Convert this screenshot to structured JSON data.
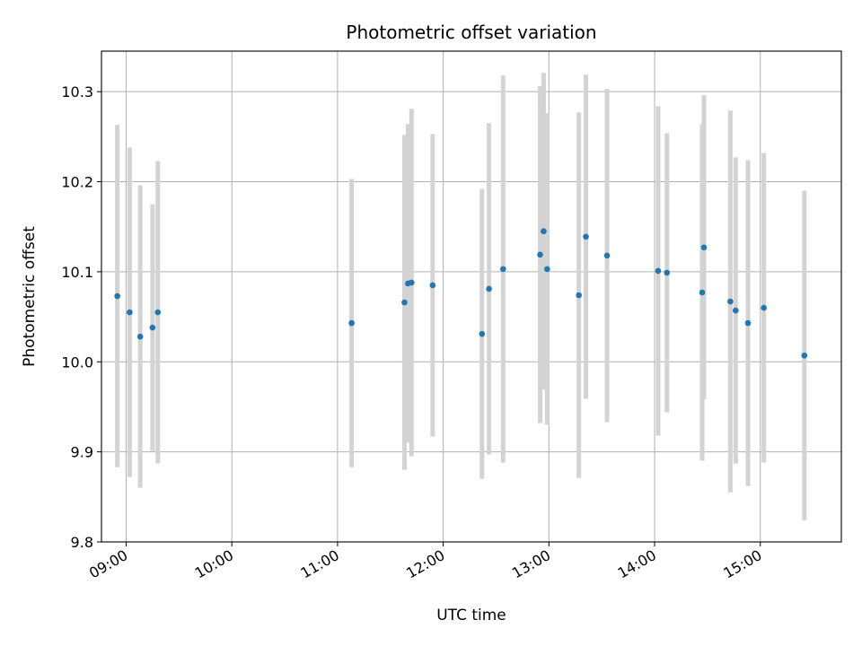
{
  "chart_data": {
    "type": "scatter",
    "title": "Photometric offset variation",
    "xlabel": "UTC time",
    "ylabel": "Photometric offset",
    "x_unit": "hours UTC",
    "xlim": [
      "08:46",
      "15:46"
    ],
    "ylim": [
      9.8,
      10.345
    ],
    "x_ticks": [
      "09:00",
      "10:00",
      "11:00",
      "12:00",
      "13:00",
      "14:00",
      "15:00"
    ],
    "y_ticks": [
      "9.8",
      "9.9",
      "10.0",
      "10.1",
      "10.2",
      "10.3"
    ],
    "grid": true,
    "colors": {
      "point": "#1f77b4",
      "errorbar": "#d3d3d3",
      "grid": "#b0b0b0"
    },
    "points": [
      {
        "x": "08:55",
        "y": 10.073,
        "err": 0.19
      },
      {
        "x": "09:02",
        "y": 10.055,
        "err": 0.183
      },
      {
        "x": "09:08",
        "y": 10.028,
        "err": 0.168
      },
      {
        "x": "09:15",
        "y": 10.038,
        "err": 0.137
      },
      {
        "x": "09:18",
        "y": 10.055,
        "err": 0.168
      },
      {
        "x": "11:08",
        "y": 10.043,
        "err": 0.16
      },
      {
        "x": "11:38",
        "y": 10.066,
        "err": 0.186
      },
      {
        "x": "11:40",
        "y": 10.087,
        "err": 0.177
      },
      {
        "x": "11:42",
        "y": 10.088,
        "err": 0.193
      },
      {
        "x": "11:54",
        "y": 10.085,
        "err": 0.168
      },
      {
        "x": "12:22",
        "y": 10.031,
        "err": 0.161
      },
      {
        "x": "12:26",
        "y": 10.081,
        "err": 0.184
      },
      {
        "x": "12:34",
        "y": 10.103,
        "err": 0.215
      },
      {
        "x": "12:55",
        "y": 10.119,
        "err": 0.187
      },
      {
        "x": "12:57",
        "y": 10.145,
        "err": 0.176
      },
      {
        "x": "12:59",
        "y": 10.103,
        "err": 0.173
      },
      {
        "x": "13:17",
        "y": 10.074,
        "err": 0.203
      },
      {
        "x": "13:21",
        "y": 10.139,
        "err": 0.18
      },
      {
        "x": "13:33",
        "y": 10.118,
        "err": 0.185
      },
      {
        "x": "14:02",
        "y": 10.101,
        "err": 0.183
      },
      {
        "x": "14:07",
        "y": 10.099,
        "err": 0.155
      },
      {
        "x": "14:27",
        "y": 10.077,
        "err": 0.187
      },
      {
        "x": "14:28",
        "y": 10.127,
        "err": 0.169
      },
      {
        "x": "14:43",
        "y": 10.067,
        "err": 0.212
      },
      {
        "x": "14:46",
        "y": 10.057,
        "err": 0.17
      },
      {
        "x": "14:53",
        "y": 10.043,
        "err": 0.181
      },
      {
        "x": "15:02",
        "y": 10.06,
        "err": 0.172
      },
      {
        "x": "15:25",
        "y": 10.007,
        "err": 0.183
      }
    ]
  }
}
